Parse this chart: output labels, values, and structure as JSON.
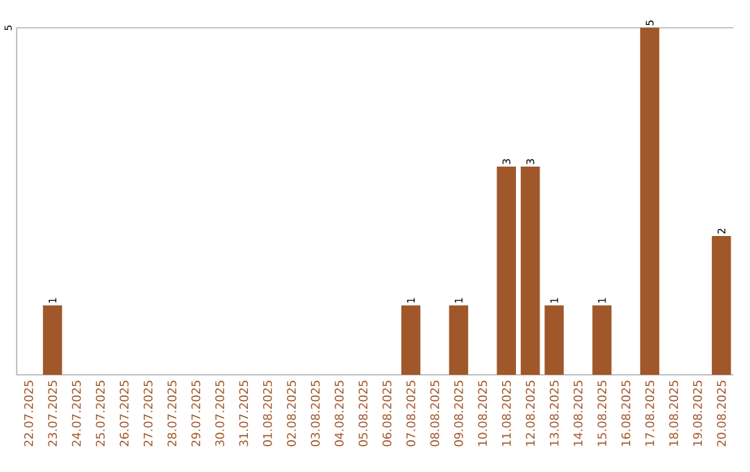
{
  "chart_data": {
    "type": "bar",
    "categories": [
      "22.07.2025",
      "23.07.2025",
      "24.07.2025",
      "25.07.2025",
      "26.07.2025",
      "27.07.2025",
      "28.07.2025",
      "29.07.2025",
      "30.07.2025",
      "31.07.2025",
      "01.08.2025",
      "02.08.2025",
      "03.08.2025",
      "04.08.2025",
      "05.08.2025",
      "06.08.2025",
      "07.08.2025",
      "08.08.2025",
      "09.08.2025",
      "10.08.2025",
      "11.08.2025",
      "12.08.2025",
      "13.08.2025",
      "14.08.2025",
      "15.08.2025",
      "16.08.2025",
      "17.08.2025",
      "18.08.2025",
      "19.08.2025",
      "20.08.2025"
    ],
    "values": [
      0,
      1,
      0,
      0,
      0,
      0,
      0,
      0,
      0,
      0,
      0,
      0,
      0,
      0,
      0,
      0,
      1,
      0,
      1,
      0,
      3,
      3,
      1,
      0,
      1,
      0,
      5,
      0,
      0,
      2
    ],
    "value_labels": [
      null,
      "1",
      null,
      null,
      null,
      null,
      null,
      null,
      null,
      null,
      null,
      null,
      null,
      null,
      null,
      null,
      "1",
      null,
      "1",
      null,
      "3",
      "3",
      "1",
      null,
      "1",
      null,
      "5",
      null,
      null,
      "2"
    ],
    "color": "#a0582a",
    "ylim": [
      0,
      5
    ],
    "yticks": [
      5
    ]
  }
}
